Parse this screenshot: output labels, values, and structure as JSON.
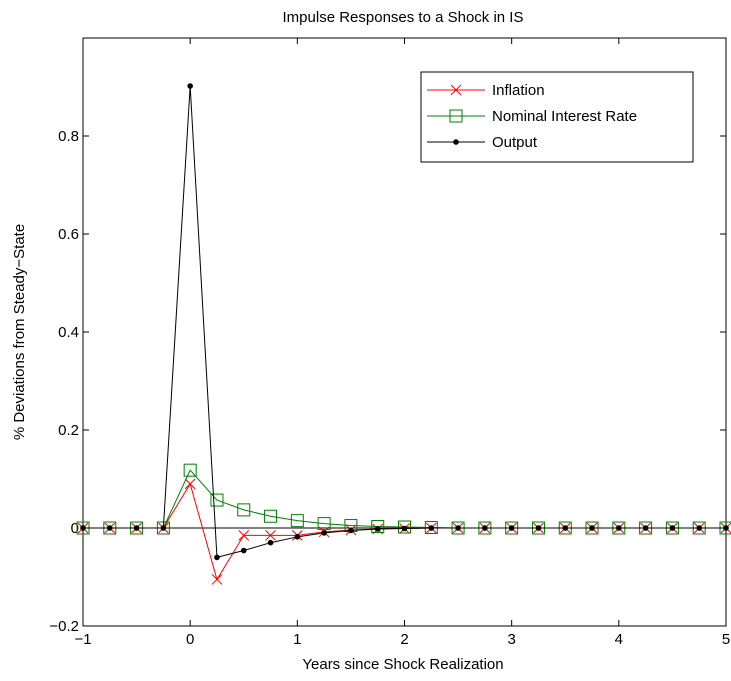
{
  "chart_data": {
    "type": "line",
    "title": "Impulse Responses to a Shock in IS",
    "xlabel": "Years since Shock Realization",
    "ylabel": "% Deviations from Steady−State",
    "xlim": [
      -1,
      5
    ],
    "ylim": [
      -0.2,
      1.0
    ],
    "xticks": [
      -1,
      0,
      1,
      2,
      3,
      4,
      5
    ],
    "xtick_labels": [
      "−1",
      "0",
      "1",
      "2",
      "3",
      "4",
      "5"
    ],
    "yticks": [
      -0.2,
      0,
      0.2,
      0.4,
      0.6,
      0.8
    ],
    "ytick_labels": [
      "−0.2",
      "0",
      "0.2",
      "0.4",
      "0.6",
      "0.8"
    ],
    "grid": false,
    "legend_position": "top-right",
    "zero_line": true,
    "x": [
      -1,
      -0.75,
      -0.5,
      -0.25,
      0,
      0.25,
      0.5,
      0.75,
      1,
      1.25,
      1.5,
      1.75,
      2,
      2.25,
      2.5,
      2.75,
      3,
      3.25,
      3.5,
      3.75,
      4,
      4.25,
      4.5,
      4.75,
      5
    ],
    "series": [
      {
        "name": "Inflation",
        "color": "#ff0000",
        "marker": "x",
        "values": [
          0,
          0,
          0,
          0,
          0.09,
          -0.105,
          -0.015,
          -0.015,
          -0.015,
          -0.008,
          -0.004,
          -0.002,
          -0.001,
          0,
          0,
          0,
          0,
          0,
          0,
          0,
          0,
          0,
          0,
          0,
          0
        ]
      },
      {
        "name": "Nominal Interest Rate",
        "color": "#008000",
        "marker": "square",
        "values": [
          0,
          0,
          0,
          0,
          0.118,
          0.057,
          0.037,
          0.024,
          0.015,
          0.009,
          0.005,
          0.003,
          0.002,
          0.001,
          0,
          0,
          0,
          0,
          0,
          0,
          0,
          0,
          0,
          0,
          0
        ]
      },
      {
        "name": "Output",
        "color": "#000000",
        "marker": "dot",
        "values": [
          0,
          0,
          0,
          0,
          0.902,
          -0.06,
          -0.046,
          -0.03,
          -0.018,
          -0.01,
          -0.005,
          -0.002,
          -0.001,
          0,
          0,
          0,
          0,
          0,
          0,
          0,
          0,
          0,
          0,
          0,
          0
        ]
      }
    ]
  }
}
